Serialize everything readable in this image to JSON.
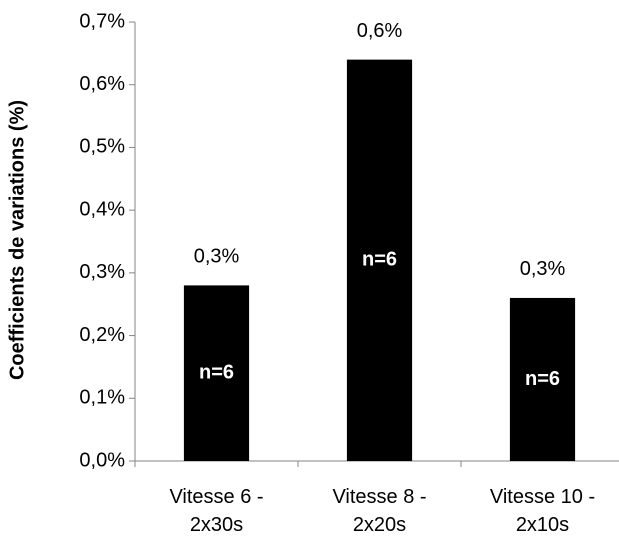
{
  "chart_data": {
    "type": "bar",
    "y_label": "Coefficients de variations (%)",
    "categories": [
      "Vitesse 6 - 2x30s",
      "Vitesse 8 - 2x20s",
      "Vitesse 10 - 2x10s"
    ],
    "values": [
      0.28,
      0.64,
      0.26
    ],
    "value_labels": [
      "0,3%",
      "0,6%",
      "0,3%"
    ],
    "annotations": [
      "n=6",
      "n=6",
      "n=6"
    ],
    "color": "#000000",
    "ylim": [
      0,
      0.7
    ],
    "yticks": [
      {
        "value": 0,
        "label": "0,0%"
      },
      {
        "value": 0.1,
        "label": "0,1%"
      },
      {
        "value": 0.2,
        "label": "0,2%"
      },
      {
        "value": 0.3,
        "label": "0,3%"
      },
      {
        "value": 0.4,
        "label": "0,4%"
      },
      {
        "value": 0.5,
        "label": "0,5%"
      },
      {
        "value": 0.6,
        "label": "0,6%"
      },
      {
        "value": 0.7,
        "label": "0,7%"
      }
    ],
    "grid": false
  }
}
